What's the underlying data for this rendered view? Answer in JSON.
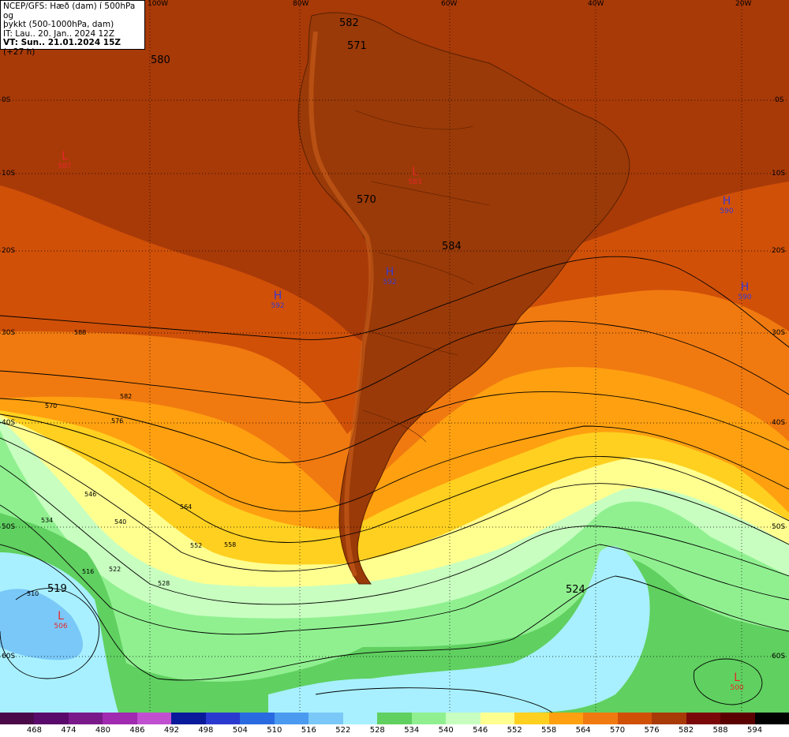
{
  "info": {
    "line1": "NCEP/GFS: Hæð (dam) í 500hPa og",
    "line2": "þykkt (500-1000hPa, dam)",
    "line3": "IT: Lau.. 20. Jan.. 2024 12Z",
    "line4_bold": "VT: Sun.. 21.01.2024 15Z",
    "line4_rest": " (+27 h)"
  },
  "lon_labels": [
    "100W",
    "80W",
    "60W",
    "40W",
    "20W"
  ],
  "lat_labels": [
    "0S",
    "10S",
    "20S",
    "30S",
    "40S",
    "50S",
    "60S"
  ],
  "height_labels": [
    "582",
    "571",
    "580",
    "570",
    "584",
    "519",
    "524"
  ],
  "pressure_centers": [
    {
      "type": "L",
      "value": "587",
      "color": "#e8262a"
    },
    {
      "type": "L",
      "value": "583",
      "color": "#e8262a"
    },
    {
      "type": "H",
      "value": "590",
      "color": "#3a3ad0"
    },
    {
      "type": "H",
      "value": "592",
      "color": "#3a3ad0"
    },
    {
      "type": "H",
      "value": "592",
      "color": "#3a3ad0"
    },
    {
      "type": "H",
      "value": "590",
      "color": "#3a3ad0"
    },
    {
      "type": "L",
      "value": "506",
      "color": "#e8262a"
    },
    {
      "type": "L",
      "value": "500",
      "color": "#e8262a"
    }
  ],
  "contour_labels": [
    "588",
    "582",
    "576",
    "570",
    "564",
    "558",
    "552",
    "546",
    "540",
    "534",
    "528",
    "522",
    "516",
    "510"
  ],
  "colorbar": {
    "labels": [
      "468",
      "474",
      "480",
      "486",
      "492",
      "498",
      "504",
      "510",
      "516",
      "522",
      "528",
      "534",
      "540",
      "546",
      "552",
      "558",
      "564",
      "570",
      "576",
      "582",
      "588",
      "594"
    ],
    "colors": [
      "#4a0a4a",
      "#5a0a6a",
      "#7a1a8a",
      "#a02ab0",
      "#c050d0",
      "#0a1a9a",
      "#2a3ad0",
      "#2a6ae0",
      "#4a9af0",
      "#7ac8f8",
      "#a8f0ff",
      "#60d060",
      "#90f090",
      "#c8ffc0",
      "#ffff90",
      "#ffd020",
      "#ffa010",
      "#f07a10",
      "#d05008",
      "#a83a08",
      "#7a0808",
      "#5a0000",
      "#000000"
    ]
  }
}
